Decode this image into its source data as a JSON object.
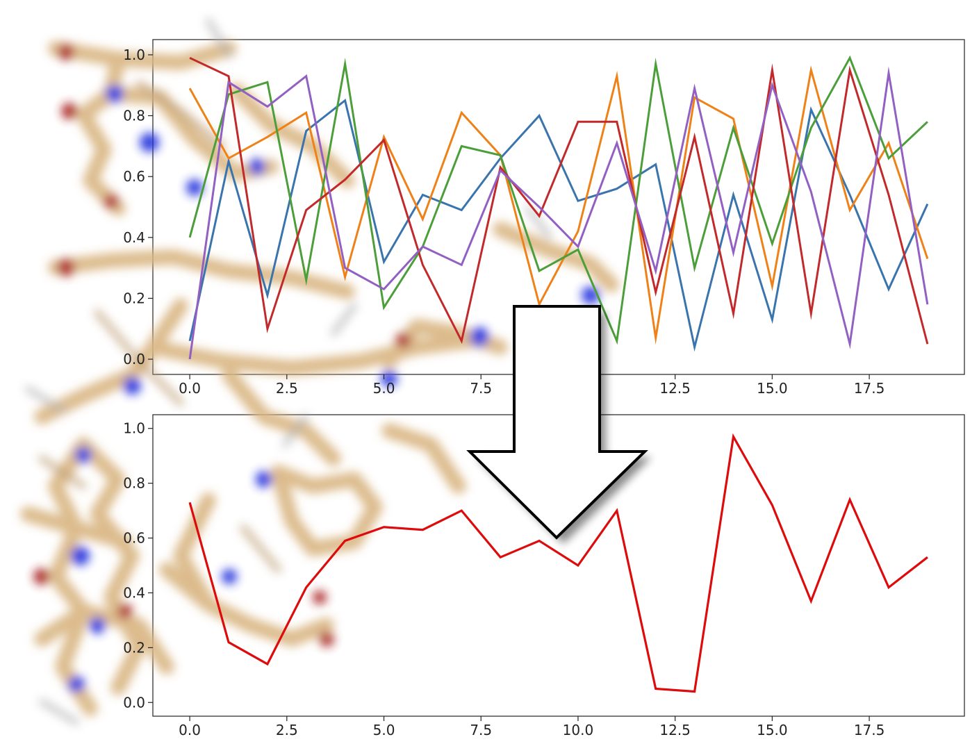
{
  "colors": {
    "blue": "#3a74ad",
    "orange": "#ee8218",
    "green": "#4b9e3a",
    "red": "#c2292b",
    "purple": "#9260c2",
    "bottom_line": "#dd0b0b"
  },
  "background_image": "blurred-molecule-stick-model",
  "arrow_icon": "down-arrow-icon",
  "chart_data": [
    {
      "type": "line",
      "title": "",
      "xlabel": "",
      "ylabel": "",
      "xlim": [
        -0.95,
        19.95
      ],
      "ylim": [
        -0.05,
        1.05
      ],
      "grid": false,
      "x": [
        0,
        1,
        2,
        3,
        4,
        5,
        6,
        7,
        8,
        9,
        10,
        11,
        12,
        13,
        14,
        15,
        16,
        17,
        18,
        19
      ],
      "x_ticks": [
        0.0,
        2.5,
        5.0,
        7.5,
        10.0,
        12.5,
        15.0,
        17.5
      ],
      "x_tick_labels": [
        "0.0",
        "2.5",
        "5.0",
        "7.5",
        "10.0",
        "12.5",
        "15.0",
        "17.5"
      ],
      "y_ticks": [
        0.0,
        0.2,
        0.4,
        0.6,
        0.8,
        1.0
      ],
      "y_tick_labels": [
        "0.0",
        "0.2",
        "0.4",
        "0.6",
        "0.8",
        "1.0"
      ],
      "series": [
        {
          "color": "#3a74ad",
          "values": [
            0.06,
            0.65,
            0.21,
            0.75,
            0.85,
            0.32,
            0.54,
            0.49,
            0.66,
            0.8,
            0.52,
            0.56,
            0.64,
            0.04,
            0.54,
            0.13,
            0.82,
            0.54,
            0.23,
            0.51
          ]
        },
        {
          "color": "#ee8218",
          "values": [
            0.89,
            0.66,
            0.73,
            0.81,
            0.27,
            0.73,
            0.46,
            0.81,
            0.67,
            0.18,
            0.42,
            0.93,
            0.07,
            0.86,
            0.79,
            0.24,
            0.95,
            0.49,
            0.71,
            0.33
          ]
        },
        {
          "color": "#4b9e3a",
          "values": [
            0.4,
            0.87,
            0.91,
            0.26,
            0.97,
            0.17,
            0.37,
            0.7,
            0.67,
            0.29,
            0.36,
            0.06,
            0.97,
            0.3,
            0.76,
            0.38,
            0.76,
            0.99,
            0.66,
            0.78
          ]
        },
        {
          "color": "#c2292b",
          "values": [
            0.99,
            0.93,
            0.1,
            0.49,
            0.59,
            0.72,
            0.31,
            0.06,
            0.63,
            0.47,
            0.78,
            0.78,
            0.22,
            0.73,
            0.15,
            0.95,
            0.15,
            0.95,
            0.54,
            0.05
          ]
        },
        {
          "color": "#9260c2",
          "values": [
            0.0,
            0.91,
            0.83,
            0.93,
            0.3,
            0.23,
            0.37,
            0.31,
            0.62,
            0.5,
            0.37,
            0.71,
            0.29,
            0.89,
            0.35,
            0.9,
            0.55,
            0.05,
            0.94,
            0.18
          ]
        }
      ]
    },
    {
      "type": "line",
      "title": "",
      "xlabel": "",
      "ylabel": "",
      "xlim": [
        -0.95,
        19.95
      ],
      "ylim": [
        -0.05,
        1.05
      ],
      "grid": false,
      "x": [
        0,
        1,
        2,
        3,
        4,
        5,
        6,
        7,
        8,
        9,
        10,
        11,
        12,
        13,
        14,
        15,
        16,
        17,
        18,
        19
      ],
      "x_ticks": [
        0.0,
        2.5,
        5.0,
        7.5,
        10.0,
        12.5,
        15.0,
        17.5
      ],
      "x_tick_labels": [
        "0.0",
        "2.5",
        "5.0",
        "7.5",
        "10.0",
        "12.5",
        "15.0",
        "17.5"
      ],
      "y_ticks": [
        0.0,
        0.2,
        0.4,
        0.6,
        0.8,
        1.0
      ],
      "y_tick_labels": [
        "0.0",
        "0.2",
        "0.4",
        "0.6",
        "0.8",
        "1.0"
      ],
      "series": [
        {
          "color": "#dd0b0b",
          "values": [
            0.73,
            0.22,
            0.14,
            0.42,
            0.59,
            0.64,
            0.63,
            0.7,
            0.53,
            0.59,
            0.5,
            0.7,
            0.05,
            0.04,
            0.97,
            0.72,
            0.37,
            0.74,
            0.42,
            0.53
          ]
        }
      ]
    }
  ]
}
